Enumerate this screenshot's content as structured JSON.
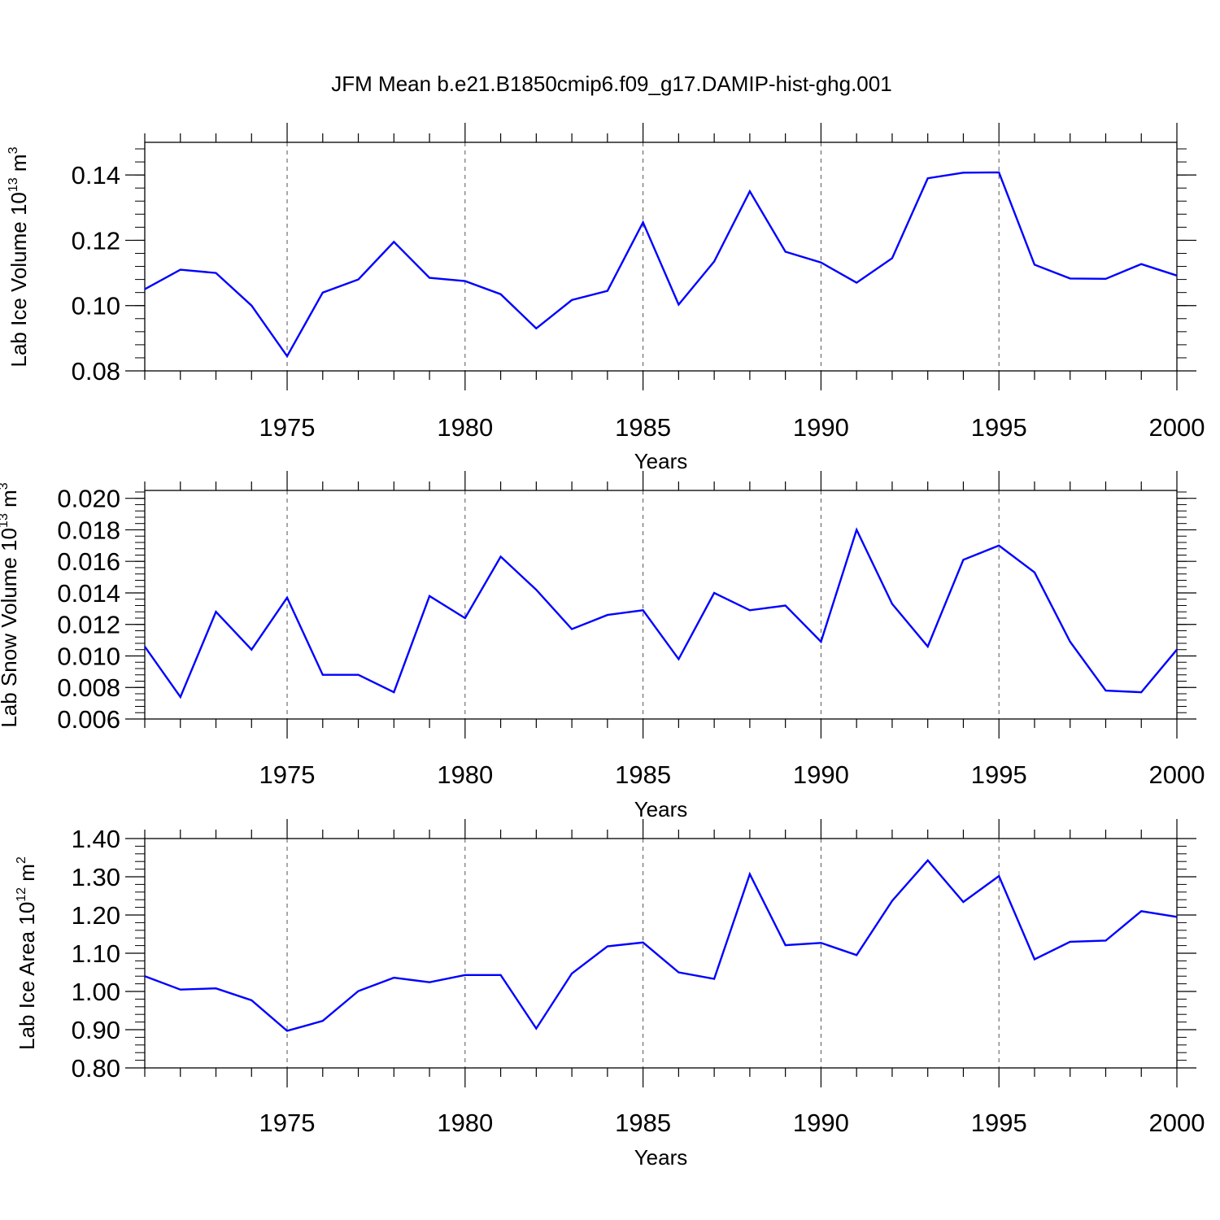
{
  "title": "JFM Mean b.e21.B1850cmip6.f09_g17.DAMIP-hist-ghg.001",
  "colors": {
    "line": "#0000ff",
    "axis": "#000000",
    "grid": "#555555"
  },
  "chart_data": [
    {
      "type": "line",
      "ylabel": {
        "main": "Lab Ice Volume 10",
        "exp": "13",
        "unit": " m",
        "unit_exp": "3"
      },
      "xlabel": "Years",
      "xlim": [
        1971,
        2000
      ],
      "ylim": [
        0.08,
        0.15
      ],
      "yticks": [
        "0.08",
        "0.10",
        "0.12",
        "0.14"
      ],
      "xticks": [
        "1975",
        "1980",
        "1985",
        "1990",
        "1995",
        "2000"
      ],
      "grid": "dashed vertical at major x ticks",
      "x": [
        1971,
        1972,
        1973,
        1974,
        1975,
        1976,
        1977,
        1978,
        1979,
        1980,
        1981,
        1982,
        1983,
        1984,
        1985,
        1986,
        1987,
        1988,
        1989,
        1990,
        1991,
        1992,
        1993,
        1994,
        1995,
        1996,
        1997,
        1998,
        1999,
        2000
      ],
      "values": [
        0.105,
        0.111,
        0.11,
        0.1,
        0.0845,
        0.104,
        0.108,
        0.1195,
        0.1085,
        0.1075,
        0.1035,
        0.093,
        0.1017,
        0.1045,
        0.1255,
        0.1003,
        0.1135,
        0.135,
        0.1165,
        0.1132,
        0.107,
        0.1145,
        0.139,
        0.1407,
        0.1408,
        0.1125,
        0.1083,
        0.1082,
        0.1127,
        0.1092
      ]
    },
    {
      "type": "line",
      "ylabel": {
        "main": "Lab Snow Volume 10",
        "exp": "13",
        "unit": " m",
        "unit_exp": "3"
      },
      "xlabel": "Years",
      "xlim": [
        1971,
        2000
      ],
      "ylim": [
        0.006,
        0.0205
      ],
      "yticks": [
        "0.006",
        "0.008",
        "0.010",
        "0.012",
        "0.014",
        "0.016",
        "0.018",
        "0.020"
      ],
      "xticks": [
        "1975",
        "1980",
        "1985",
        "1990",
        "1995",
        "2000"
      ],
      "grid": "dashed vertical at major x ticks",
      "x": [
        1971,
        1972,
        1973,
        1974,
        1975,
        1976,
        1977,
        1978,
        1979,
        1980,
        1981,
        1982,
        1983,
        1984,
        1985,
        1986,
        1987,
        1988,
        1989,
        1990,
        1991,
        1992,
        1993,
        1994,
        1995,
        1996,
        1997,
        1998,
        1999,
        2000
      ],
      "values": [
        0.0106,
        0.0074,
        0.0128,
        0.0104,
        0.0137,
        0.0088,
        0.0088,
        0.0077,
        0.0138,
        0.0124,
        0.0163,
        0.0142,
        0.0117,
        0.0126,
        0.0129,
        0.0098,
        0.014,
        0.0129,
        0.0132,
        0.0109,
        0.018,
        0.0133,
        0.0106,
        0.0161,
        0.017,
        0.0153,
        0.0109,
        0.0078,
        0.0077,
        0.0104
      ]
    },
    {
      "type": "line",
      "ylabel": {
        "main": "Lab Ice Area 10",
        "exp": "12",
        "unit": " m",
        "unit_exp": "2"
      },
      "xlabel": "Years",
      "xlim": [
        1971,
        2000
      ],
      "ylim": [
        0.8,
        1.4
      ],
      "yticks": [
        "0.80",
        "0.90",
        "1.00",
        "1.10",
        "1.20",
        "1.30",
        "1.40"
      ],
      "xticks": [
        "1975",
        "1980",
        "1985",
        "1990",
        "1995",
        "2000"
      ],
      "grid": "dashed vertical at major x ticks",
      "x": [
        1971,
        1972,
        1973,
        1974,
        1975,
        1976,
        1977,
        1978,
        1979,
        1980,
        1981,
        1982,
        1983,
        1984,
        1985,
        1986,
        1987,
        1988,
        1989,
        1990,
        1991,
        1992,
        1993,
        1994,
        1995,
        1996,
        1997,
        1998,
        1999,
        2000
      ],
      "values": [
        1.04,
        1.005,
        1.008,
        0.977,
        0.897,
        0.923,
        1.001,
        1.036,
        1.024,
        1.043,
        1.043,
        0.903,
        1.047,
        1.118,
        1.128,
        1.05,
        1.033,
        1.307,
        1.121,
        1.127,
        1.095,
        1.237,
        1.343,
        1.234,
        1.302,
        1.084,
        1.13,
        1.133,
        1.21,
        1.195
      ]
    }
  ]
}
